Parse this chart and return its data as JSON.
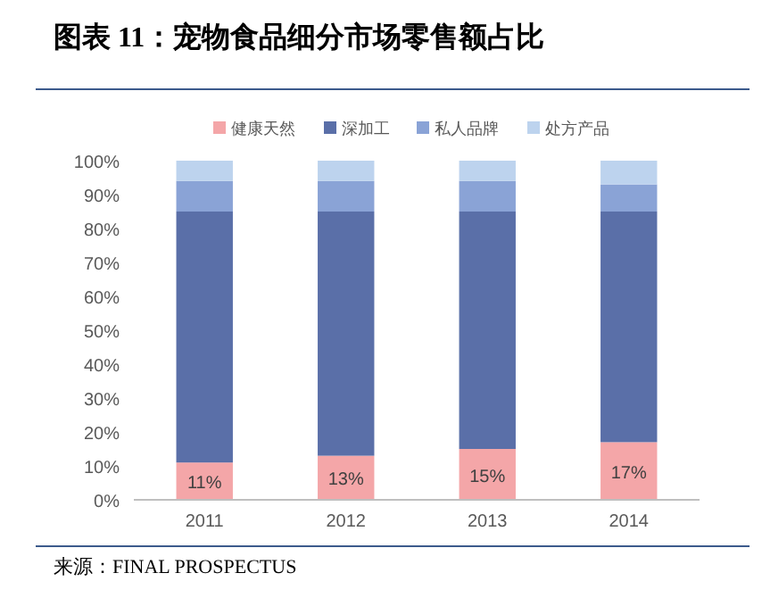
{
  "chart_data": {
    "type": "bar",
    "title": "图表 11：宠物食品细分市场零售额占比",
    "categories": [
      "2011",
      "2012",
      "2013",
      "2014"
    ],
    "stacked": true,
    "legend": "top",
    "ylim": [
      0,
      100
    ],
    "yticks": [
      {
        "value": 0,
        "label": "0%"
      },
      {
        "value": 10,
        "label": "10%"
      },
      {
        "value": 20,
        "label": "20%"
      },
      {
        "value": 30,
        "label": "30%"
      },
      {
        "value": 40,
        "label": "40%"
      },
      {
        "value": 50,
        "label": "50%"
      },
      {
        "value": 60,
        "label": "60%"
      },
      {
        "value": 70,
        "label": "70%"
      },
      {
        "value": 80,
        "label": "80%"
      },
      {
        "value": 90,
        "label": "90%"
      },
      {
        "value": 100,
        "label": "100%"
      }
    ],
    "series": [
      {
        "name": "健康天然",
        "color": "#f4a6a8",
        "values": [
          11,
          13,
          15,
          17
        ],
        "value_labels": [
          "11%",
          "13%",
          "15%",
          "17%"
        ]
      },
      {
        "name": "深加工",
        "color": "#5a6fa8",
        "values": [
          74,
          72,
          70,
          68
        ]
      },
      {
        "name": "私人品牌",
        "color": "#8aa3d6",
        "values": [
          9,
          9,
          9,
          8
        ]
      },
      {
        "name": "处方产品",
        "color": "#bdd3ee",
        "values": [
          6,
          6,
          6,
          7
        ]
      }
    ],
    "annotations": [
      "来源：FINAL PROSPECTUS"
    ]
  }
}
